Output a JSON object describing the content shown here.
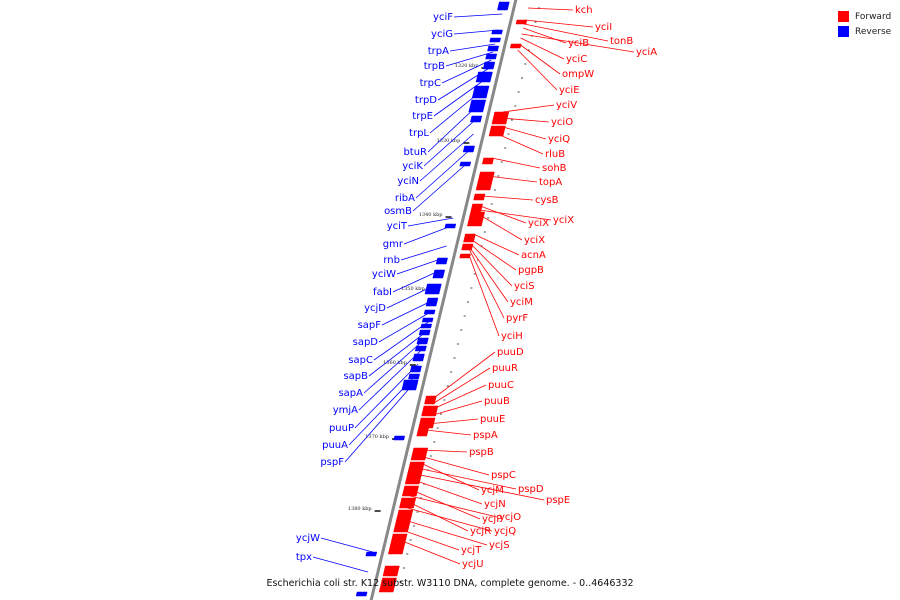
{
  "caption": "Escherichia coli str. K12 substr. W3110 DNA, complete genome. - 0..4646332",
  "legend": {
    "forward_label": "Forward",
    "reverse_label": "Reverse",
    "forward_color": "#ff0000",
    "reverse_color": "#0000ff"
  },
  "axis_color": "#888888",
  "ticks": [
    "1320 kbp",
    "1330 kbp",
    "1340 kbp",
    "1350 kbp",
    "1360 kbp",
    "1370 kbp",
    "1380 kbp"
  ],
  "reverse_genes": [
    "yciF",
    "yciG",
    "trpA",
    "trpB",
    "trpC",
    "trpD",
    "trpE",
    "trpL",
    "btuR",
    "yciK",
    "yciN",
    "ribA",
    "osmB",
    "yciT",
    "gmr",
    "rnb",
    "yciW",
    "fabI",
    "ycjD",
    "sapF",
    "sapD",
    "sapC",
    "sapB",
    "sapA",
    "ymjA",
    "puuP",
    "puuA",
    "pspF",
    "ycjW",
    "tpx"
  ],
  "forward_genes": [
    "kch",
    "yciI",
    "tonB",
    "yciB",
    "yciA",
    "yciC",
    "ompW",
    "yciE",
    "yciV",
    "yciO",
    "yciQ",
    "rluB",
    "sohB",
    "topA",
    "cysB",
    "yciX",
    "yciX",
    "yciX",
    "acnA",
    "pgpB",
    "yciS",
    "yciM",
    "pyrF",
    "yciH",
    "puuD",
    "puuR",
    "puuC",
    "puuB",
    "puuE",
    "pspA",
    "pspB",
    "pspC",
    "ycjM",
    "pspD",
    "pspE",
    "ycjN",
    "ycjP",
    "ycjO",
    "ycjR",
    "ycjQ",
    "ycjS",
    "ycjT",
    "ycjU"
  ]
}
